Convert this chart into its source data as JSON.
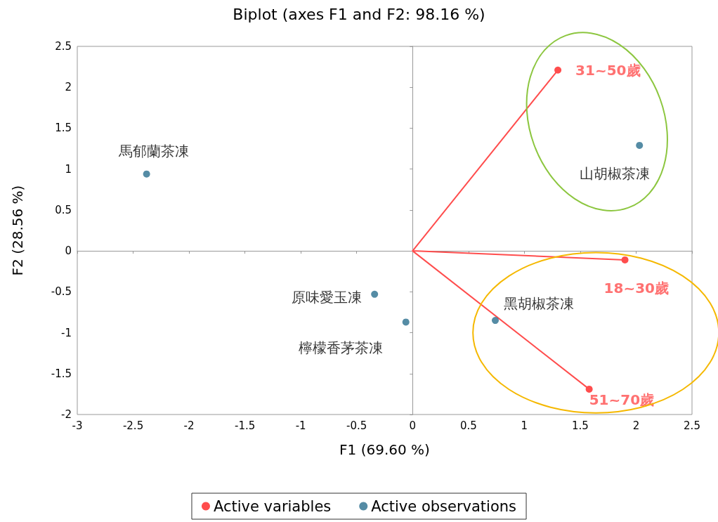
{
  "chart_data": {
    "type": "scatter",
    "title": "Biplot (axes F1 and F2: 98.16 %)",
    "xlabel": "F1 (69.60 %)",
    "ylabel": "F2 (28.56 %)",
    "series": [
      {
        "name": "Active variables",
        "type": "line",
        "color": "#ff4d4d",
        "x": [
          0,
          1.3,
          0,
          1.9,
          0,
          1.58
        ],
        "values": [
          0,
          2.21,
          0,
          -0.11,
          0,
          -1.69
        ]
      },
      {
        "name": "Active observations",
        "type": "scatter",
        "color": "#2a6f8f",
        "x": [
          -2.38,
          2.03,
          -0.34,
          -0.06,
          0.74
        ],
        "values": [
          0.94,
          1.29,
          -0.53,
          -0.87,
          -0.85
        ]
      }
    ],
    "annotations": [
      {
        "text": "31~50歲",
        "x": 1.3,
        "y": 2.21
      },
      {
        "text": "18~30歲",
        "x": 1.9,
        "y": -0.11
      },
      {
        "text": "51~70歲",
        "x": 1.58,
        "y": -1.69
      },
      {
        "text": "馬郁蘭茶凍",
        "x": -2.38,
        "y": 0.94
      },
      {
        "text": "山胡椒茶凍",
        "x": 2.03,
        "y": 1.29
      },
      {
        "text": "原味愛玉凍",
        "x": -0.34,
        "y": -0.53
      },
      {
        "text": "檸檬香茅茶凍",
        "x": -0.06,
        "y": -0.87
      },
      {
        "text": "黑胡椒茶凍",
        "x": 0.74,
        "y": -0.85
      }
    ],
    "xlim": [
      -3,
      2.5
    ],
    "xticks": [
      -3,
      -2.5,
      -2,
      -1.5,
      -1,
      -0.5,
      0,
      0.5,
      1,
      1.5,
      2,
      2.5
    ],
    "ylim": [
      -2,
      2.5
    ],
    "yticks": [
      -2,
      -1.5,
      -1,
      -0.5,
      0,
      0.5,
      1,
      1.5,
      2,
      2.5
    ],
    "marker": "circle",
    "legend": "bottom"
  }
}
